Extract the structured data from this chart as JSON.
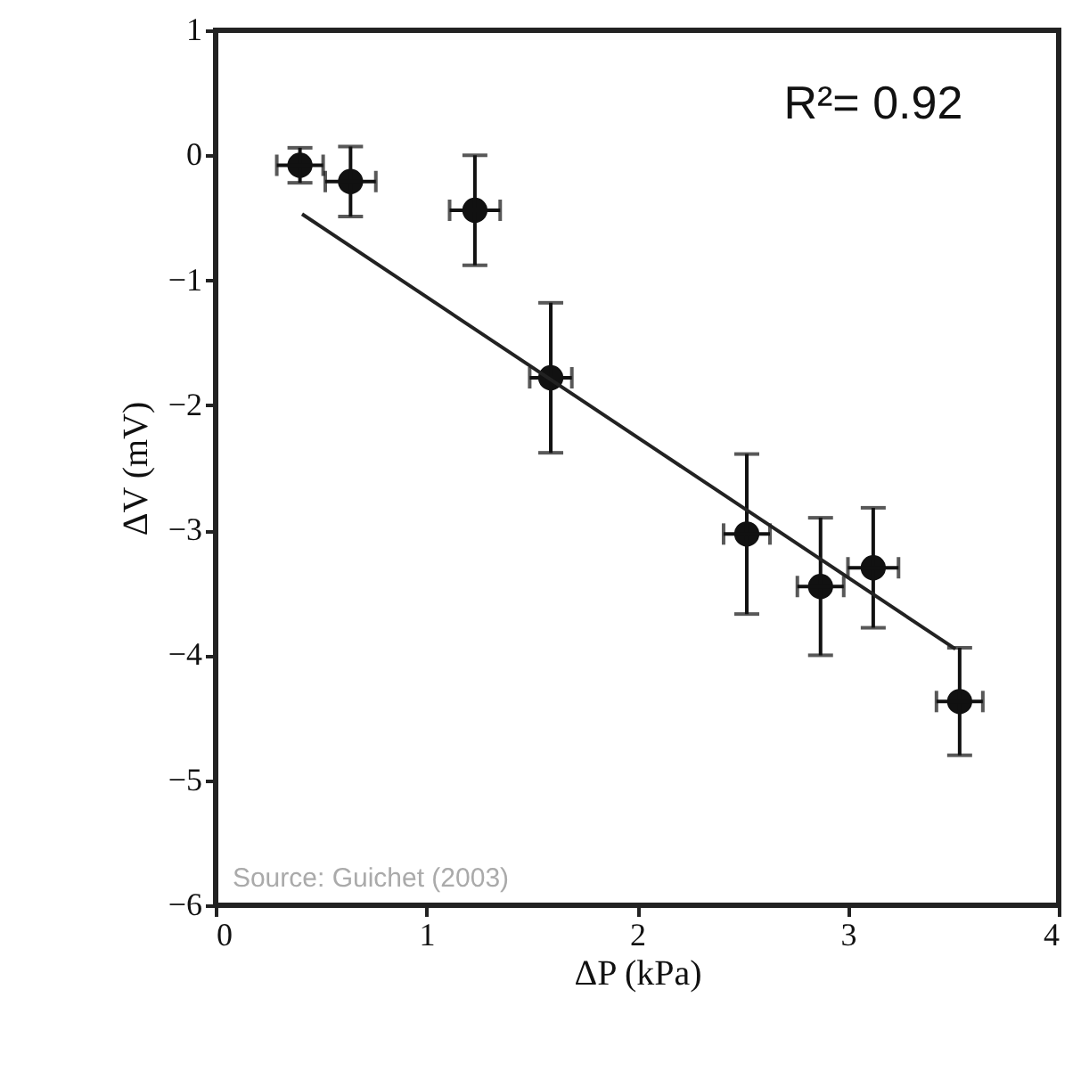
{
  "chart_data": {
    "type": "scatter",
    "xlabel": "ΔP (kPa)",
    "ylabel": "ΔV (mV)",
    "xlim": [
      0,
      4
    ],
    "xticks": [
      0,
      1,
      2,
      3,
      4
    ],
    "ylim": [
      -6,
      1
    ],
    "yticks": [
      -6,
      -5,
      -4,
      -3,
      -2,
      -1,
      0,
      1
    ],
    "grid": false,
    "annotations": [
      "R²= 0.92",
      "Source: Guichet (2003)"
    ],
    "series": [
      {
        "marker": "circle",
        "color": "#111111",
        "x": [
          0.4,
          0.64,
          1.23,
          1.59,
          2.52,
          2.87,
          3.12,
          3.53
        ],
        "values": [
          -0.08,
          -0.21,
          -0.44,
          -1.78,
          -3.03,
          -3.45,
          -3.3,
          -4.37
        ],
        "errors": [
          0.14,
          0.28,
          0.44,
          0.6,
          0.64,
          0.55,
          0.48,
          0.43
        ],
        "xerrors": [
          0.11,
          0.12,
          0.12,
          0.1,
          0.11,
          0.11,
          0.12,
          0.11
        ]
      },
      {
        "type": "line",
        "color": "#222222",
        "line_style": "solid",
        "x": [
          0.41,
          3.51
        ],
        "values": [
          -0.47,
          -3.95
        ]
      }
    ]
  }
}
